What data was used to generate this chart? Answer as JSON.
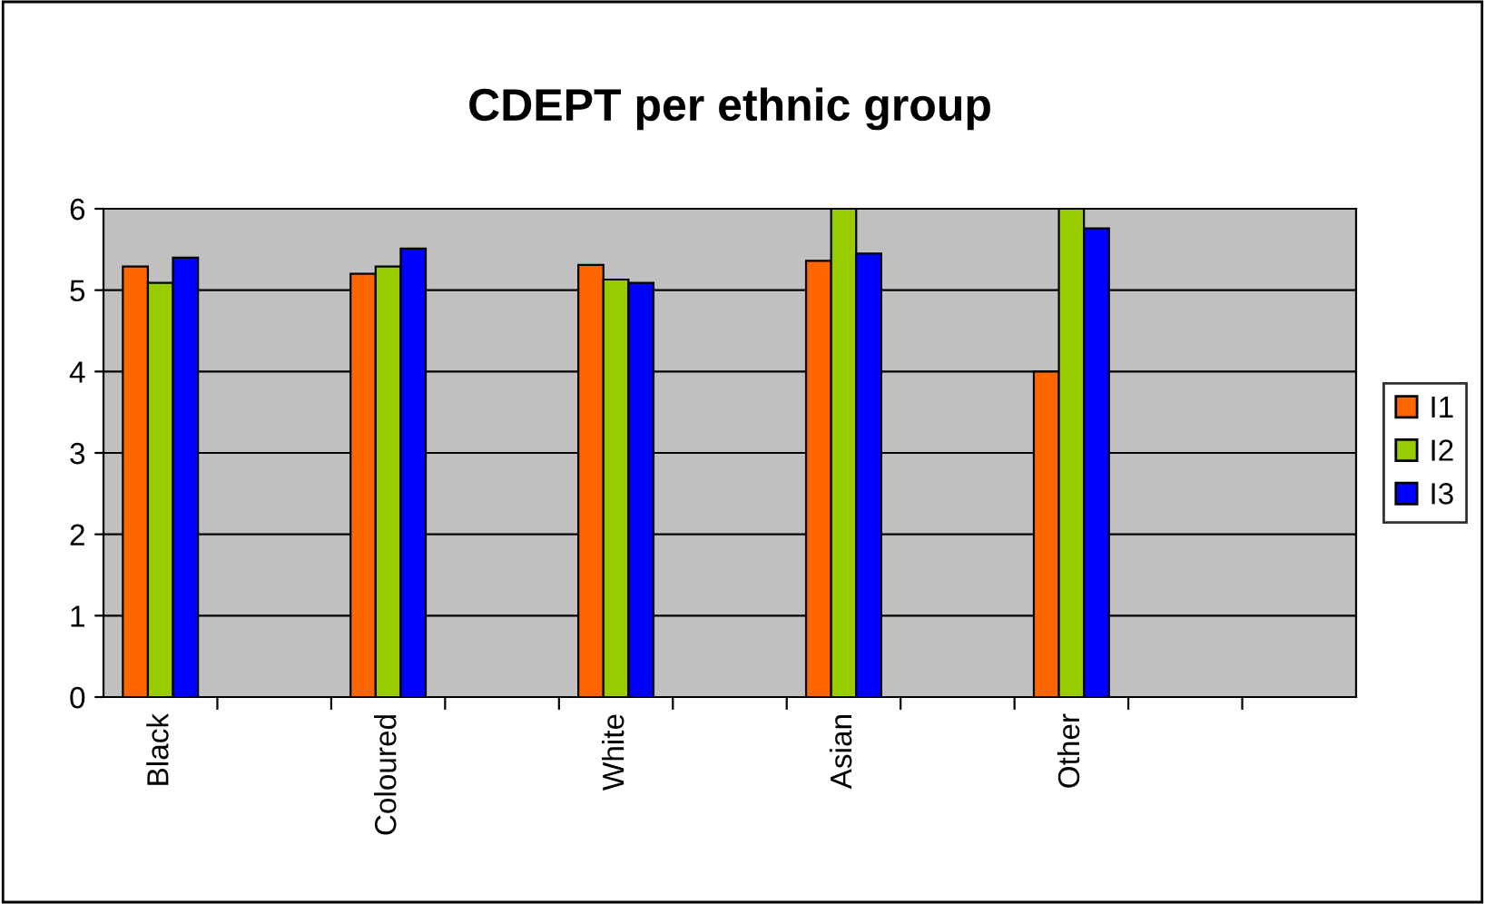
{
  "chart_data": {
    "type": "bar",
    "title": "CDEPT per ethnic group",
    "categories": [
      "Black",
      null,
      "Coloured",
      null,
      "White",
      null,
      "Asian",
      null,
      "Other",
      null,
      null
    ],
    "series": [
      {
        "name": "I1",
        "color": "#ff6600",
        "values": [
          5.29,
          null,
          5.2,
          null,
          5.31,
          null,
          5.36,
          null,
          4.0,
          null,
          null
        ]
      },
      {
        "name": "I2",
        "color": "#99cc00",
        "values": [
          5.09,
          null,
          5.29,
          null,
          5.13,
          null,
          6.0,
          null,
          6.0,
          null,
          null
        ]
      },
      {
        "name": "I3",
        "color": "#0000ff",
        "values": [
          5.4,
          null,
          5.51,
          null,
          5.09,
          null,
          5.45,
          null,
          5.76,
          null,
          null
        ]
      }
    ],
    "ylim": [
      0,
      6
    ],
    "yticks": [
      0,
      1,
      2,
      3,
      4,
      5,
      6
    ],
    "grid": "y",
    "legend": "right"
  }
}
